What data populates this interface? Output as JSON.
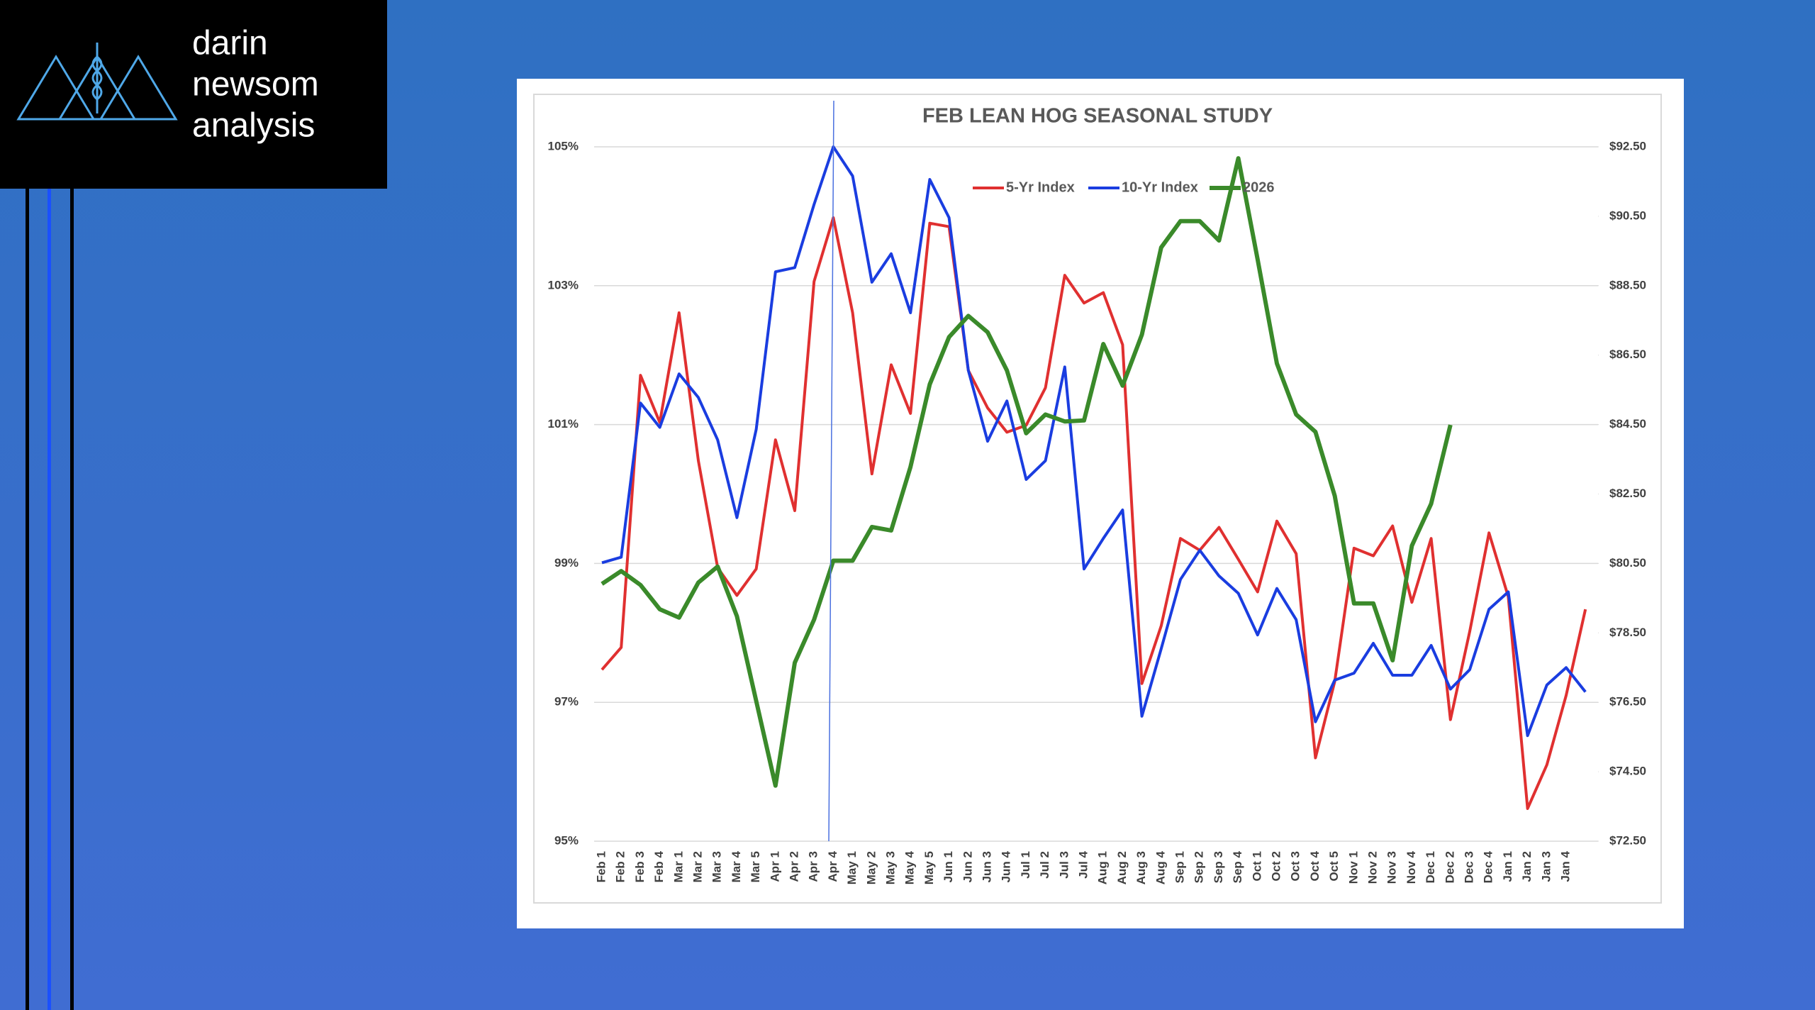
{
  "logo": [
    "darin",
    "newsom",
    "analysis"
  ],
  "chart_data": {
    "type": "line",
    "title": "FEB LEAN HOG SEASONAL STUDY",
    "categories": [
      "Feb 1",
      "Feb 2",
      "Feb 3",
      "Feb 4",
      "Mar 1",
      "Mar 2",
      "Mar 3",
      "Mar 4",
      "Mar 5",
      "Apr 1",
      "Apr 2",
      "Apr 3",
      "Apr 4",
      "May 1",
      "May 2",
      "May 3",
      "May 4",
      "May 5",
      "Jun 1",
      "Jun 2",
      "Jun 3",
      "Jun 4",
      "Jul 1",
      "Jul 2",
      "Jul 3",
      "Jul 4",
      "Aug 1",
      "Aug 2",
      "Aug 3",
      "Aug 4",
      "Sep 1",
      "Sep 2",
      "Sep 3",
      "Sep 4",
      "Oct 1",
      "Oct 2",
      "Oct 3",
      "Oct 4",
      "Oct 5",
      "Nov 1",
      "Nov 2",
      "Nov 3",
      "Nov 4",
      "Dec 1",
      "Dec 2",
      "Dec 3",
      "Dec 4",
      "Jan 1",
      "Jan 2",
      "Jan 3",
      "Jan 4",
      null
    ],
    "series": [
      {
        "name": "5-Yr Index",
        "color": "#e03030",
        "values": [
          97.47,
          97.79,
          101.71,
          101.03,
          102.61,
          100.48,
          98.94,
          98.54,
          98.92,
          100.78,
          99.76,
          103.06,
          103.98,
          102.61,
          100.29,
          101.86,
          101.16,
          103.9,
          103.85,
          101.78,
          101.24,
          100.89,
          100.99,
          101.53,
          103.15,
          102.75,
          102.9,
          102.15,
          97.27,
          98.1,
          99.36,
          99.19,
          99.52,
          99.06,
          98.59,
          99.61,
          99.14,
          96.2,
          97.3,
          99.22,
          99.11,
          99.54,
          98.44,
          99.36,
          96.75,
          98.02,
          99.44,
          98.52,
          95.47,
          96.1,
          97.1,
          98.34
        ]
      },
      {
        "name": "10-Yr Index",
        "color": "#1a3de0",
        "values": [
          99.01,
          99.09,
          101.31,
          100.96,
          101.73,
          101.39,
          100.78,
          99.66,
          100.93,
          103.2,
          103.26,
          104.17,
          105.0,
          104.58,
          103.05,
          103.46,
          102.61,
          104.53,
          103.98,
          101.78,
          100.76,
          101.34,
          100.21,
          100.48,
          101.83,
          98.92,
          99.36,
          99.77,
          96.8,
          97.77,
          98.77,
          99.19,
          98.82,
          98.57,
          97.97,
          98.64,
          98.19,
          96.72,
          97.32,
          97.42,
          97.85,
          97.39,
          97.39,
          97.82,
          97.19,
          97.47,
          98.34,
          98.59,
          96.52,
          97.25,
          97.5,
          97.15
        ]
      },
      {
        "name": "2026",
        "color": "#3a8a2a",
        "axis": "y2",
        "values": [
          79.91,
          80.28,
          79.88,
          79.18,
          78.94,
          79.95,
          80.41,
          78.98,
          76.54,
          74.1,
          77.64,
          78.88,
          80.58,
          80.58,
          81.55,
          81.45,
          83.28,
          85.66,
          87.02,
          87.63,
          87.16,
          86.06,
          84.25,
          84.79,
          84.59,
          84.62,
          86.82,
          85.62,
          87.09,
          89.6,
          90.36,
          90.36,
          89.8,
          92.17,
          89.26,
          86.26,
          84.79,
          84.29,
          82.45,
          79.35,
          79.35,
          77.71,
          81.01,
          82.22,
          84.49,
          null,
          null,
          null,
          null,
          null,
          null,
          null
        ]
      }
    ],
    "ylim": [
      95,
      105
    ],
    "yticks": [
      {
        "value": 95,
        "label": "95%"
      },
      {
        "value": 97,
        "label": "97%"
      },
      {
        "value": 99,
        "label": "99%"
      },
      {
        "value": 101,
        "label": "101%"
      },
      {
        "value": 103,
        "label": "103%"
      },
      {
        "value": 105,
        "label": "105%"
      }
    ],
    "y2lim": [
      72.5,
      92.5
    ],
    "y2ticks": [
      {
        "value": 72.5,
        "label": "$72.50"
      },
      {
        "value": 74.5,
        "label": "$74.50"
      },
      {
        "value": 76.5,
        "label": "$76.50"
      },
      {
        "value": 78.5,
        "label": "$78.50"
      },
      {
        "value": 80.5,
        "label": "$80.50"
      },
      {
        "value": 82.5,
        "label": "$82.50"
      },
      {
        "value": 84.5,
        "label": "$84.50"
      },
      {
        "value": 86.5,
        "label": "$86.50"
      },
      {
        "value": 88.5,
        "label": "$88.50"
      },
      {
        "value": 90.5,
        "label": "$90.50"
      },
      {
        "value": 92.5,
        "label": "$92.50"
      }
    ],
    "grid": true,
    "legend": "top"
  }
}
